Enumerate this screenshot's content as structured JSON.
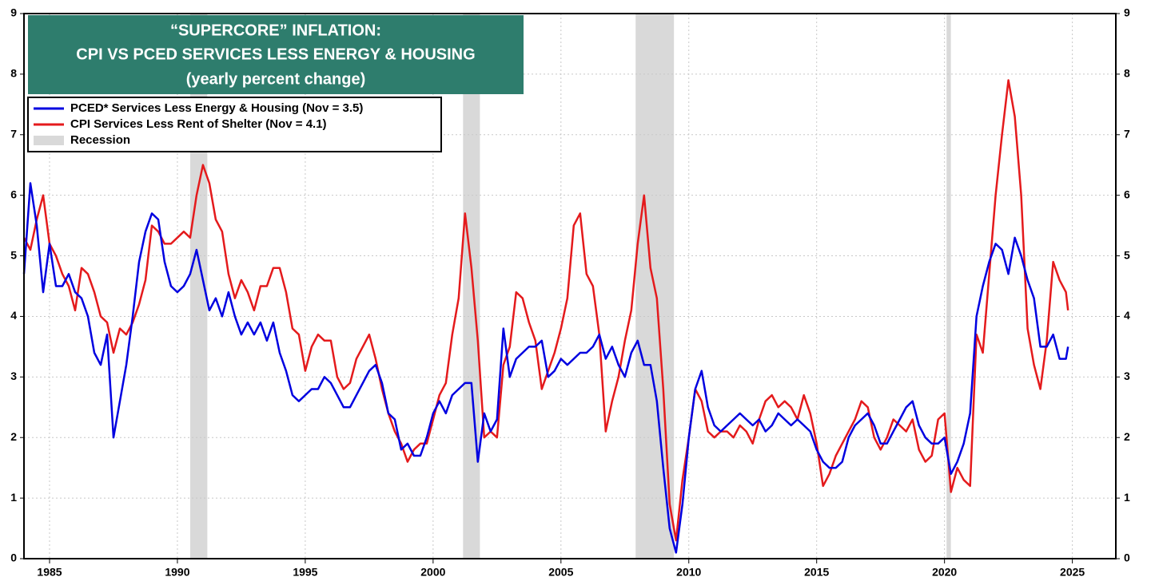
{
  "chart_data": {
    "type": "line",
    "title": [
      "“SUPERCORE” INFLATION:",
      "CPI VS PCED SERVICES LESS ENERGY & HOUSING",
      "(yearly percent change)"
    ],
    "title_color": "#2e7d6d",
    "xlim": [
      1984,
      2026.7
    ],
    "xticks": [
      1985,
      1990,
      1995,
      2000,
      2005,
      2010,
      2015,
      2020,
      2025
    ],
    "ylim": [
      0,
      9
    ],
    "yticks": [
      0,
      1,
      2,
      3,
      4,
      5,
      6,
      7,
      8,
      9
    ],
    "y2lim": [
      0,
      9
    ],
    "y2ticks": [
      0,
      1,
      2,
      3,
      4,
      5,
      6,
      7,
      8,
      9
    ],
    "grid": true,
    "legend": "top-left",
    "shaded": {
      "name": "Recession",
      "color": "#d9d9d9",
      "ranges": [
        [
          1990.5,
          1991.17
        ],
        [
          2001.17,
          2001.83
        ],
        [
          2007.92,
          2009.42
        ],
        [
          2020.08,
          2020.25
        ]
      ]
    },
    "x": [
      1984,
      1984.25,
      1984.5,
      1984.75,
      1985,
      1985.25,
      1985.5,
      1985.75,
      1986,
      1986.25,
      1986.5,
      1986.75,
      1987,
      1987.25,
      1987.5,
      1987.75,
      1988,
      1988.25,
      1988.5,
      1988.75,
      1989,
      1989.25,
      1989.5,
      1989.75,
      1990,
      1990.25,
      1990.5,
      1990.75,
      1991,
      1991.25,
      1991.5,
      1991.75,
      1992,
      1992.25,
      1992.5,
      1992.75,
      1993,
      1993.25,
      1993.5,
      1993.75,
      1994,
      1994.25,
      1994.5,
      1994.75,
      1995,
      1995.25,
      1995.5,
      1995.75,
      1996,
      1996.25,
      1996.5,
      1996.75,
      1997,
      1997.25,
      1997.5,
      1997.75,
      1998,
      1998.25,
      1998.5,
      1998.75,
      1999,
      1999.25,
      1999.5,
      1999.75,
      2000,
      2000.25,
      2000.5,
      2000.75,
      2001,
      2001.25,
      2001.5,
      2001.75,
      2002,
      2002.25,
      2002.5,
      2002.75,
      2003,
      2003.25,
      2003.5,
      2003.75,
      2004,
      2004.25,
      2004.5,
      2004.75,
      2005,
      2005.25,
      2005.5,
      2005.75,
      2006,
      2006.25,
      2006.5,
      2006.75,
      2007,
      2007.25,
      2007.5,
      2007.75,
      2008,
      2008.25,
      2008.5,
      2008.75,
      2009,
      2009.25,
      2009.5,
      2009.75,
      2010,
      2010.25,
      2010.5,
      2010.75,
      2011,
      2011.25,
      2011.5,
      2011.75,
      2012,
      2012.25,
      2012.5,
      2012.75,
      2013,
      2013.25,
      2013.5,
      2013.75,
      2014,
      2014.25,
      2014.5,
      2014.75,
      2015,
      2015.25,
      2015.5,
      2015.75,
      2016,
      2016.25,
      2016.5,
      2016.75,
      2017,
      2017.25,
      2017.5,
      2017.75,
      2018,
      2018.25,
      2018.5,
      2018.75,
      2019,
      2019.25,
      2019.5,
      2019.75,
      2020,
      2020.25,
      2020.5,
      2020.75,
      2021,
      2021.25,
      2021.5,
      2021.75,
      2022,
      2022.25,
      2022.5,
      2022.75,
      2023,
      2023.25,
      2023.5,
      2023.75,
      2024,
      2024.25,
      2024.5,
      2024.75,
      2024.83
    ],
    "series": [
      {
        "name": "PCED* Services Less Energy & Housing  (Nov = 3.5)",
        "color": "#0000e0",
        "values": [
          4.7,
          6.2,
          5.5,
          4.4,
          5.2,
          4.5,
          4.5,
          4.7,
          4.4,
          4.3,
          4.0,
          3.4,
          3.2,
          3.7,
          2.0,
          2.6,
          3.2,
          4.0,
          4.9,
          5.4,
          5.7,
          5.6,
          4.9,
          4.5,
          4.4,
          4.5,
          4.7,
          5.1,
          4.6,
          4.1,
          4.3,
          4.0,
          4.4,
          4.0,
          3.7,
          3.9,
          3.7,
          3.9,
          3.6,
          3.9,
          3.4,
          3.1,
          2.7,
          2.6,
          2.7,
          2.8,
          2.8,
          3.0,
          2.9,
          2.7,
          2.5,
          2.5,
          2.7,
          2.9,
          3.1,
          3.2,
          2.9,
          2.4,
          2.3,
          1.8,
          1.9,
          1.7,
          1.7,
          2.0,
          2.4,
          2.6,
          2.4,
          2.7,
          2.8,
          2.9,
          2.9,
          1.6,
          2.4,
          2.1,
          2.3,
          3.8,
          3.0,
          3.3,
          3.4,
          3.5,
          3.5,
          3.6,
          3.0,
          3.1,
          3.3,
          3.2,
          3.3,
          3.4,
          3.4,
          3.5,
          3.7,
          3.3,
          3.5,
          3.2,
          3.0,
          3.4,
          3.6,
          3.2,
          3.2,
          2.6,
          1.5,
          0.5,
          0.1,
          0.9,
          2.0,
          2.8,
          3.1,
          2.5,
          2.2,
          2.1,
          2.2,
          2.3,
          2.4,
          2.3,
          2.2,
          2.3,
          2.1,
          2.2,
          2.4,
          2.3,
          2.2,
          2.3,
          2.2,
          2.1,
          1.8,
          1.6,
          1.5,
          1.5,
          1.6,
          2.0,
          2.2,
          2.3,
          2.4,
          2.2,
          1.9,
          1.9,
          2.1,
          2.3,
          2.5,
          2.6,
          2.2,
          2.0,
          1.9,
          1.9,
          2.0,
          1.4,
          1.6,
          1.9,
          2.4,
          4.0,
          4.5,
          4.9,
          5.2,
          5.1,
          4.7,
          5.3,
          5.0,
          4.6,
          4.3,
          3.5,
          3.5,
          3.7,
          3.3,
          3.3,
          3.5
        ]
      },
      {
        "name": "CPI Services Less Rent of Shelter  (Nov = 4.1)",
        "color": "#e41a1c",
        "values": [
          5.3,
          5.1,
          5.6,
          6.0,
          5.2,
          5.0,
          4.7,
          4.5,
          4.1,
          4.8,
          4.7,
          4.4,
          4.0,
          3.9,
          3.4,
          3.8,
          3.7,
          3.9,
          4.2,
          4.6,
          5.5,
          5.4,
          5.2,
          5.2,
          5.3,
          5.4,
          5.3,
          6.0,
          6.5,
          6.2,
          5.6,
          5.4,
          4.7,
          4.3,
          4.6,
          4.4,
          4.1,
          4.5,
          4.5,
          4.8,
          4.8,
          4.4,
          3.8,
          3.7,
          3.1,
          3.5,
          3.7,
          3.6,
          3.6,
          3.0,
          2.8,
          2.9,
          3.3,
          3.5,
          3.7,
          3.3,
          2.8,
          2.4,
          2.1,
          1.9,
          1.6,
          1.8,
          1.9,
          1.9,
          2.3,
          2.7,
          2.9,
          3.7,
          4.3,
          5.7,
          4.8,
          3.6,
          2.0,
          2.1,
          2.0,
          3.2,
          3.5,
          4.4,
          4.3,
          3.9,
          3.6,
          2.8,
          3.1,
          3.4,
          3.8,
          4.3,
          5.5,
          5.7,
          4.7,
          4.5,
          3.7,
          2.1,
          2.6,
          3.0,
          3.6,
          4.1,
          5.2,
          6.0,
          4.8,
          4.3,
          2.8,
          0.9,
          0.3,
          1.3,
          2.0,
          2.8,
          2.6,
          2.1,
          2.0,
          2.1,
          2.1,
          2.0,
          2.2,
          2.1,
          1.9,
          2.3,
          2.6,
          2.7,
          2.5,
          2.6,
          2.5,
          2.3,
          2.7,
          2.4,
          1.9,
          1.2,
          1.4,
          1.7,
          1.9,
          2.1,
          2.3,
          2.6,
          2.5,
          2.0,
          1.8,
          2.0,
          2.3,
          2.2,
          2.1,
          2.3,
          1.8,
          1.6,
          1.7,
          2.3,
          2.4,
          1.1,
          1.5,
          1.3,
          1.2,
          3.7,
          3.4,
          4.7,
          6.0,
          7.0,
          7.9,
          7.3,
          6.0,
          3.8,
          3.2,
          2.8,
          3.6,
          4.9,
          4.6,
          4.4,
          4.1
        ]
      }
    ]
  }
}
